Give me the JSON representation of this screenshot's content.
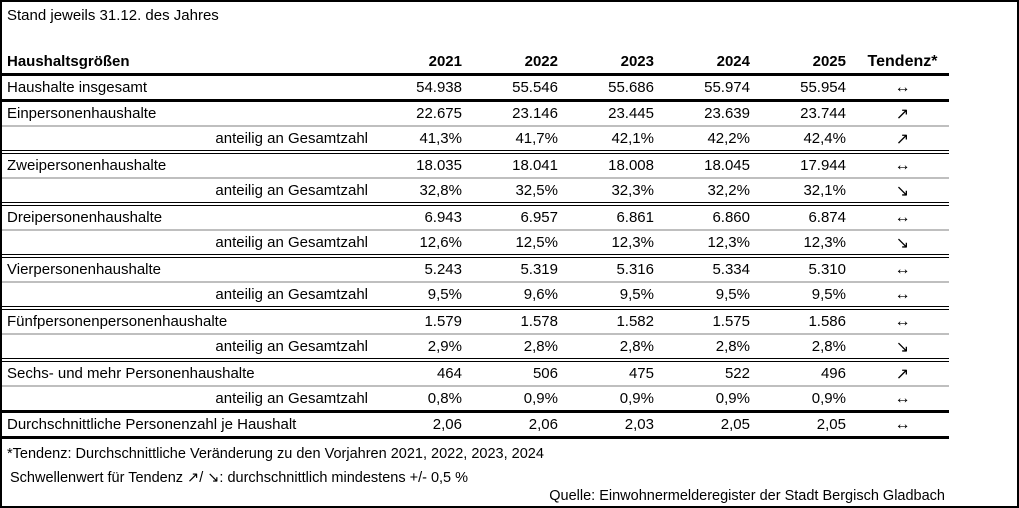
{
  "page": {
    "title": "Stand jeweils 31.12. des Jahres",
    "source_note": "Quelle: Einwohnermelderegister der Stadt Bergisch Gladbach"
  },
  "colors": {
    "text": "#000000",
    "thick_rule": "#000000",
    "group_rule_gray": "#bfbfbf",
    "background": "#ffffff"
  },
  "trend_icons": {
    "stable": "↔",
    "up": "↗",
    "down": "↘"
  },
  "table": {
    "header": {
      "label": "Haushaltsgrößen",
      "years": [
        "2021",
        "2022",
        "2023",
        "2024",
        "2025"
      ],
      "trend": "Tendenz*"
    },
    "rows": [
      {
        "label": "Haushalte insgesamt",
        "indent": false,
        "values": [
          "54.938",
          "55.546",
          "55.686",
          "55.974",
          "55.954"
        ],
        "trend": "↔",
        "trend_name": "stable",
        "divider_after": "thick"
      },
      {
        "label": "Einpersonenhaushalte",
        "indent": false,
        "values": [
          "22.675",
          "23.146",
          "23.445",
          "23.639",
          "23.744"
        ],
        "trend": "↗",
        "trend_name": "up",
        "divider_after": "gray"
      },
      {
        "label": "anteilig an Gesamtzahl",
        "indent": true,
        "values": [
          "41,3%",
          "41,7%",
          "42,1%",
          "42,2%",
          "42,4%"
        ],
        "trend": "↗",
        "trend_name": "up",
        "divider_after": "double"
      },
      {
        "label": "Zweipersonenhaushalte",
        "indent": false,
        "values": [
          "18.035",
          "18.041",
          "18.008",
          "18.045",
          "17.944"
        ],
        "trend": "↔",
        "trend_name": "stable",
        "divider_after": "gray"
      },
      {
        "label": "anteilig an Gesamtzahl",
        "indent": true,
        "values": [
          "32,8%",
          "32,5%",
          "32,3%",
          "32,2%",
          "32,1%"
        ],
        "trend": "↘",
        "trend_name": "down",
        "divider_after": "double"
      },
      {
        "label": "Dreipersonenhaushalte",
        "indent": false,
        "values": [
          "6.943",
          "6.957",
          "6.861",
          "6.860",
          "6.874"
        ],
        "trend": "↔",
        "trend_name": "stable",
        "divider_after": "gray"
      },
      {
        "label": "anteilig an Gesamtzahl",
        "indent": true,
        "values": [
          "12,6%",
          "12,5%",
          "12,3%",
          "12,3%",
          "12,3%"
        ],
        "trend": "↘",
        "trend_name": "down",
        "divider_after": "double"
      },
      {
        "label": "Vierpersonenhaushalte",
        "indent": false,
        "values": [
          "5.243",
          "5.319",
          "5.316",
          "5.334",
          "5.310"
        ],
        "trend": "↔",
        "trend_name": "stable",
        "divider_after": "gray"
      },
      {
        "label": "anteilig an Gesamtzahl",
        "indent": true,
        "values": [
          "9,5%",
          "9,6%",
          "9,5%",
          "9,5%",
          "9,5%"
        ],
        "trend": "↔",
        "trend_name": "stable",
        "divider_after": "double"
      },
      {
        "label": "Fünfpersonenpersonenhaushalte",
        "indent": false,
        "values": [
          "1.579",
          "1.578",
          "1.582",
          "1.575",
          "1.586"
        ],
        "trend": "↔",
        "trend_name": "stable",
        "divider_after": "gray"
      },
      {
        "label": "anteilig an Gesamtzahl",
        "indent": true,
        "values": [
          "2,9%",
          "2,8%",
          "2,8%",
          "2,8%",
          "2,8%"
        ],
        "trend": "↘",
        "trend_name": "down",
        "divider_after": "double"
      },
      {
        "label": "Sechs- und mehr Personenhaushalte",
        "indent": false,
        "values": [
          "464",
          "506",
          "475",
          "522",
          "496"
        ],
        "trend": "↗",
        "trend_name": "up",
        "divider_after": "gray"
      },
      {
        "label": "anteilig an Gesamtzahl",
        "indent": true,
        "values": [
          "0,8%",
          "0,9%",
          "0,9%",
          "0,9%",
          "0,9%"
        ],
        "trend": "↔",
        "trend_name": "stable",
        "divider_after": "thick"
      },
      {
        "label": "Durchschnittliche Personenzahl je Haushalt",
        "indent": false,
        "values": [
          "2,06",
          "2,06",
          "2,03",
          "2,05",
          "2,05"
        ],
        "trend": "↔",
        "trend_name": "stable",
        "divider_after": "bottom"
      }
    ]
  },
  "footnotes": [
    "*Tendenz: Durchschnittliche Veränderung zu den Vorjahren 2021, 2022, 2023, 2024",
    "Schwellenwert für Tendenz ↗/ ↘: durchschnittlich mindestens +/- 0,5 %"
  ]
}
